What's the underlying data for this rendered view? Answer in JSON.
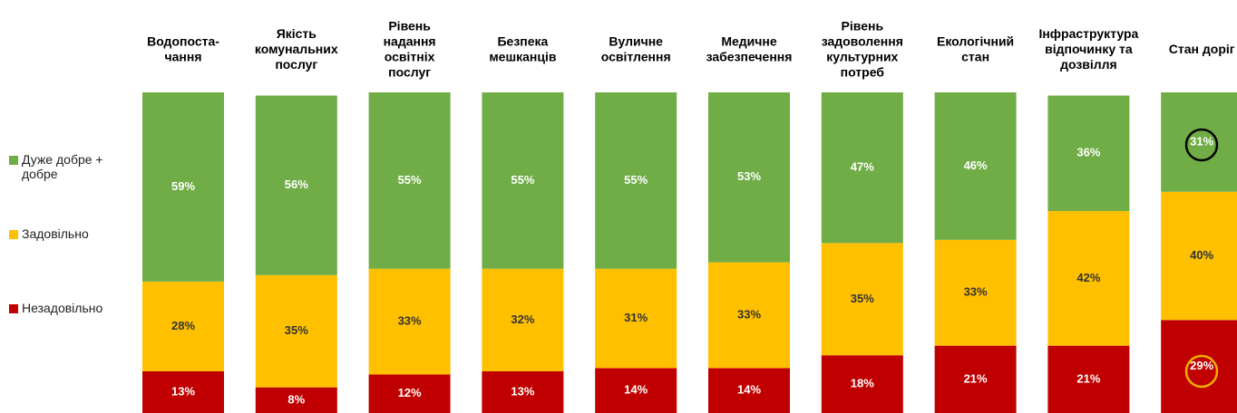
{
  "chart_data": {
    "type": "stacked-bar",
    "categories": [
      [
        "Водопоста-",
        "чання"
      ],
      [
        "Якість",
        "комунальних",
        "послуг"
      ],
      [
        "Рівень",
        "надання",
        "освітніх",
        "послуг"
      ],
      [
        "Безпека",
        "мешканців"
      ],
      [
        "Вуличне",
        "освітлення"
      ],
      [
        "Медичне",
        "забезпечення"
      ],
      [
        "Рівень",
        "задоволення",
        "культурних",
        "потреб"
      ],
      [
        "Екологічний",
        "стан"
      ],
      [
        "Інфраструктура",
        "відпочинку та",
        "дозвілля"
      ],
      [
        "Стан доріг"
      ]
    ],
    "series": [
      {
        "name": "Незадовільно",
        "color": "#c00000",
        "values": [
          13,
          8,
          12,
          13,
          14,
          14,
          18,
          21,
          21,
          29
        ],
        "value_labels": [
          "13%",
          "8%",
          "12%",
          "13%",
          "14%",
          "14%",
          "18%",
          "21%",
          "21%",
          "29%"
        ]
      },
      {
        "name": "Задовільно",
        "color": "#ffc000",
        "values": [
          28,
          35,
          33,
          32,
          31,
          33,
          35,
          33,
          42,
          40
        ],
        "value_labels": [
          "28%",
          "35%",
          "33%",
          "32%",
          "31%",
          "33%",
          "35%",
          "33%",
          "42%",
          "40%"
        ]
      },
      {
        "name": "Дуже добре + добре",
        "color": "#70ad47",
        "values": [
          59,
          56,
          55,
          55,
          55,
          53,
          47,
          46,
          36,
          31
        ],
        "value_labels": [
          "59%",
          "56%",
          "55%",
          "55%",
          "55%",
          "53%",
          "47%",
          "46%",
          "36%",
          "31%"
        ]
      }
    ],
    "ylim": [
      0,
      100
    ]
  }
}
